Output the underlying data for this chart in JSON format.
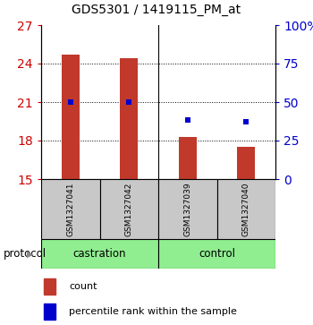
{
  "title": "GDS5301 / 1419115_PM_at",
  "samples": [
    "GSM1327041",
    "GSM1327042",
    "GSM1327039",
    "GSM1327040"
  ],
  "bar_values": [
    24.7,
    24.4,
    18.3,
    17.5
  ],
  "dot_values": [
    21.0,
    21.0,
    19.6,
    19.5
  ],
  "bar_bottom": 15,
  "ylim_left": [
    15,
    27
  ],
  "ylim_right": [
    0,
    100
  ],
  "left_ticks": [
    15,
    18,
    21,
    24,
    27
  ],
  "right_ticks": [
    0,
    25,
    50,
    75,
    100
  ],
  "right_tick_labels": [
    "0",
    "25",
    "50",
    "75",
    "100%"
  ],
  "bar_color": "#C0392B",
  "dot_color": "#0000CC",
  "left_tick_color": "#CC0000",
  "right_tick_color": "#0000CC",
  "legend_bar_label": "count",
  "legend_dot_label": "percentile rank within the sample",
  "protocol_label": "protocol",
  "sample_box_color": "#C8C8C8",
  "group_box_color": "#90EE90",
  "grid_yticks": [
    18,
    21,
    24
  ]
}
